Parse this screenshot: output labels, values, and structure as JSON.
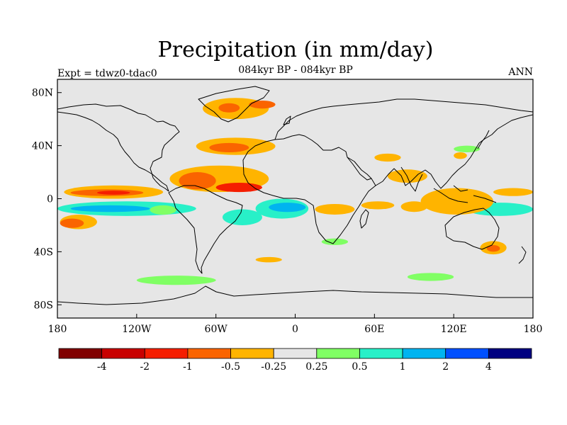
{
  "title": "Precipitation (in mm/day)",
  "subtitle": "084kyr BP - 084kyr BP",
  "left_label": "Expt = tdwz0-tdac0",
  "right_label": "ANN",
  "colors": {
    "background_ocean": "#e6e6e6",
    "coast": "#000000",
    "levels": [
      "#800000",
      "#c80000",
      "#f51e00",
      "#fa6400",
      "#ffb400",
      "#e6e6e6",
      "#80ff64",
      "#28f0c8",
      "#00b4f0",
      "#0050ff",
      "#000080"
    ]
  },
  "chart_data": {
    "type": "heatmap",
    "title": "Precipitation (in mm/day)",
    "subtitle": "084kyr BP - 084kyr BP",
    "x_axis": {
      "range": [
        -180,
        180
      ],
      "ticks": [
        -180,
        -120,
        -60,
        0,
        60,
        120,
        180
      ],
      "tick_labels": [
        "180",
        "120W",
        "60W",
        "0",
        "60E",
        "120E",
        "180"
      ]
    },
    "y_axis": {
      "range": [
        -90,
        90
      ],
      "ticks": [
        80,
        40,
        0,
        -40,
        -80
      ],
      "tick_labels": [
        "80N",
        "40N",
        "0",
        "40S",
        "80S"
      ]
    },
    "colorbar": {
      "boundaries": [
        "-4",
        "-2",
        "-1",
        "-0.5",
        "-0.25",
        "0.25",
        "0.5",
        "1",
        "2",
        "4"
      ],
      "colors": [
        "#800000",
        "#c80000",
        "#f51e00",
        "#fa6400",
        "#ffb400",
        "#e6e6e6",
        "#80ff64",
        "#28f0c8",
        "#00b4f0",
        "#0050ff",
        "#000080"
      ]
    },
    "anomaly_regions": [
      {
        "lon": [
          -70,
          -20
        ],
        "lat": [
          60,
          76
        ],
        "level": 4
      },
      {
        "lon": [
          -58,
          -42
        ],
        "lat": [
          65,
          72
        ],
        "level": 3
      },
      {
        "lon": [
          -35,
          -15
        ],
        "lat": [
          68,
          74
        ],
        "level": 3
      },
      {
        "lon": [
          -75,
          -15
        ],
        "lat": [
          33,
          46
        ],
        "level": 4
      },
      {
        "lon": [
          -65,
          -35
        ],
        "lat": [
          35,
          42
        ],
        "level": 3
      },
      {
        "lon": [
          -95,
          -20
        ],
        "lat": [
          5,
          25
        ],
        "level": 4
      },
      {
        "lon": [
          -88,
          -60
        ],
        "lat": [
          7,
          20
        ],
        "level": 3
      },
      {
        "lon": [
          -60,
          -25
        ],
        "lat": [
          5,
          12
        ],
        "level": 2
      },
      {
        "lon": [
          -175,
          -100
        ],
        "lat": [
          0,
          10
        ],
        "level": 4
      },
      {
        "lon": [
          -170,
          -115
        ],
        "lat": [
          2,
          7
        ],
        "level": 3
      },
      {
        "lon": [
          -150,
          -125
        ],
        "lat": [
          3,
          6
        ],
        "level": 2
      },
      {
        "lon": [
          -178,
          -150
        ],
        "lat": [
          -23,
          -12
        ],
        "level": 4
      },
      {
        "lon": [
          -178,
          -160
        ],
        "lat": [
          -22,
          -15
        ],
        "level": 3
      },
      {
        "lon": [
          -180,
          -75
        ],
        "lat": [
          -13,
          -2
        ],
        "level": 7
      },
      {
        "lon": [
          -170,
          -110
        ],
        "lat": [
          -10,
          -5
        ],
        "level": 8
      },
      {
        "lon": [
          -30,
          10
        ],
        "lat": [
          -15,
          0
        ],
        "level": 7
      },
      {
        "lon": [
          -20,
          8
        ],
        "lat": [
          -10,
          -3
        ],
        "level": 8
      },
      {
        "lon": [
          -55,
          -25
        ],
        "lat": [
          -20,
          -8
        ],
        "level": 7
      },
      {
        "lon": [
          130,
          180
        ],
        "lat": [
          -13,
          -3
        ],
        "level": 7
      },
      {
        "lon": [
          80,
          100
        ],
        "lat": [
          -10,
          -2
        ],
        "level": 4
      },
      {
        "lon": [
          15,
          45
        ],
        "lat": [
          -12,
          -4
        ],
        "level": 4
      },
      {
        "lon": [
          50,
          75
        ],
        "lat": [
          -8,
          -2
        ],
        "level": 4
      },
      {
        "lon": [
          70,
          100
        ],
        "lat": [
          12,
          22
        ],
        "level": 4
      },
      {
        "lon": [
          150,
          180
        ],
        "lat": [
          2,
          8
        ],
        "level": 4
      },
      {
        "lon": [
          95,
          150
        ],
        "lat": [
          -12,
          8
        ],
        "level": 4
      },
      {
        "lon": [
          140,
          160
        ],
        "lat": [
          -42,
          -32
        ],
        "level": 4
      },
      {
        "lon": [
          145,
          155
        ],
        "lat": [
          -40,
          -35
        ],
        "level": 3
      },
      {
        "lon": [
          -120,
          -60
        ],
        "lat": [
          -65,
          -58
        ],
        "level": 6
      },
      {
        "lon": [
          85,
          120
        ],
        "lat": [
          -62,
          -56
        ],
        "level": 6
      },
      {
        "lon": [
          120,
          140
        ],
        "lat": [
          35,
          40
        ],
        "level": 6
      },
      {
        "lon": [
          20,
          40
        ],
        "lat": [
          -35,
          -30
        ],
        "level": 6
      },
      {
        "lon": [
          60,
          80
        ],
        "lat": [
          28,
          34
        ],
        "level": 4
      },
      {
        "lon": [
          -30,
          -10
        ],
        "lat": [
          -48,
          -44
        ],
        "level": 4
      },
      {
        "lon": [
          -110,
          -90
        ],
        "lat": [
          -12,
          -5
        ],
        "level": 6
      },
      {
        "lon": [
          120,
          130
        ],
        "lat": [
          30,
          35
        ],
        "level": 4
      }
    ]
  }
}
